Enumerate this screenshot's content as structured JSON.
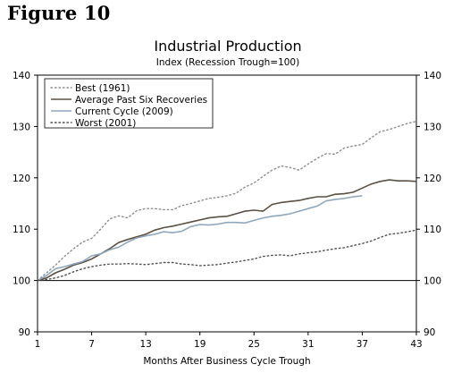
{
  "figure_label": "Figure 10",
  "chart_data": {
    "type": "line",
    "title": "Industrial Production",
    "subtitle": "Index (Recession Trough=100)",
    "xlabel": "Months After Business Cycle Trough",
    "ylabel": "",
    "xlim": [
      1,
      43
    ],
    "ylim": [
      90,
      140
    ],
    "xticks": [
      1,
      7,
      13,
      19,
      25,
      31,
      37,
      43
    ],
    "yticks": [
      90,
      100,
      110,
      120,
      130,
      140
    ],
    "grid": false,
    "reference_line": 100,
    "legend_position": "top-left",
    "series": [
      {
        "name": "Best (1961)",
        "color": "#8c8c8c",
        "style": "dotted",
        "x": [
          1,
          2,
          3,
          4,
          5,
          6,
          7,
          8,
          9,
          10,
          11,
          12,
          13,
          14,
          15,
          16,
          17,
          18,
          19,
          20,
          21,
          22,
          23,
          24,
          25,
          26,
          27,
          28,
          29,
          30,
          31,
          32,
          33,
          34,
          35,
          36,
          37,
          38,
          39,
          40,
          41,
          42,
          43
        ],
        "values": [
          100,
          101.5,
          103,
          104.7,
          106.2,
          107.5,
          108.2,
          110,
          112,
          112.6,
          112.2,
          113.6,
          114,
          114,
          113.8,
          113.8,
          114.6,
          115,
          115.5,
          116,
          116.2,
          116.5,
          117,
          118.2,
          119,
          120.3,
          121.5,
          122.3,
          122,
          121.5,
          122.7,
          123.8,
          124.7,
          124.6,
          125.8,
          126.2,
          126.5,
          127.8,
          129,
          129.4,
          130,
          130.6,
          131
        ]
      },
      {
        "name": "Average Past Six Recoveries",
        "color": "#5a5043",
        "style": "solid",
        "x": [
          1,
          2,
          3,
          4,
          5,
          6,
          7,
          8,
          9,
          10,
          11,
          12,
          13,
          14,
          15,
          16,
          17,
          18,
          19,
          20,
          21,
          22,
          23,
          24,
          25,
          26,
          27,
          28,
          29,
          30,
          31,
          32,
          33,
          34,
          35,
          36,
          37,
          38,
          39,
          40,
          41,
          42,
          43
        ],
        "values": [
          100,
          100.5,
          101.5,
          102.2,
          103,
          103.5,
          104.2,
          105.2,
          106.2,
          107.4,
          108,
          108.5,
          109,
          109.8,
          110.3,
          110.6,
          111,
          111.4,
          111.8,
          112.2,
          112.4,
          112.5,
          113,
          113.5,
          113.7,
          113.5,
          114.8,
          115.2,
          115.4,
          115.6,
          116,
          116.3,
          116.3,
          116.8,
          116.9,
          117.2,
          118,
          118.8,
          119.3,
          119.6,
          119.4,
          119.4,
          119.3
        ]
      },
      {
        "name": "Current Cycle (2009)",
        "color": "#8fa7bd",
        "style": "solid",
        "x": [
          1,
          2,
          3,
          4,
          5,
          6,
          7,
          8,
          9,
          10,
          11,
          12,
          13,
          14,
          15,
          16,
          17,
          18,
          19,
          20,
          21,
          22,
          23,
          24,
          25,
          26,
          27,
          28,
          29,
          30,
          31,
          32,
          33,
          34,
          35,
          36,
          37
        ],
        "values": [
          100,
          101,
          102.3,
          102.7,
          103.2,
          103.7,
          104.8,
          105.2,
          106,
          106.5,
          107.5,
          108.3,
          108.7,
          109,
          109.5,
          109.3,
          109.6,
          110.5,
          110.9,
          110.8,
          111,
          111.3,
          111.3,
          111.2,
          111.7,
          112.2,
          112.5,
          112.7,
          113,
          113.5,
          114,
          114.5,
          115.5,
          115.8,
          116,
          116.3,
          116.5
        ]
      },
      {
        "name": "Worst (2001)",
        "color": "#505050",
        "style": "dotted",
        "x": [
          1,
          2,
          3,
          4,
          5,
          6,
          7,
          8,
          9,
          10,
          11,
          12,
          13,
          14,
          15,
          16,
          17,
          18,
          19,
          20,
          21,
          22,
          23,
          24,
          25,
          26,
          27,
          28,
          29,
          30,
          31,
          32,
          33,
          34,
          35,
          36,
          37,
          38,
          39,
          40,
          41,
          42,
          43
        ],
        "values": [
          100,
          100.2,
          100.5,
          101,
          101.7,
          102.3,
          102.7,
          103,
          103.2,
          103.2,
          103.3,
          103.2,
          103.1,
          103.3,
          103.5,
          103.5,
          103.2,
          103.1,
          102.9,
          103,
          103.1,
          103.4,
          103.6,
          103.9,
          104.2,
          104.7,
          104.9,
          105,
          104.8,
          105.2,
          105.4,
          105.6,
          105.9,
          106.2,
          106.4,
          106.8,
          107.2,
          107.7,
          108.4,
          109,
          109.2,
          109.5,
          109.8
        ]
      }
    ]
  }
}
